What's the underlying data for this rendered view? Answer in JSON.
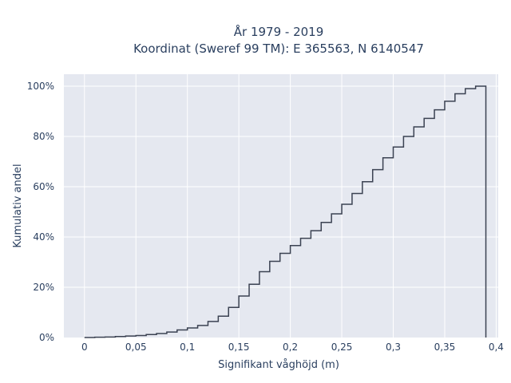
{
  "chart_data": {
    "type": "line",
    "line_shape": "step",
    "title_line1": "År 1979 - 2019",
    "title_line2": "Koordinat (Sweref 99 TM): E 365563, N 6140547",
    "xlabel": "Signifikant våghöjd (m)",
    "ylabel": "Kumulativ andel",
    "xlim": [
      -0.02,
      0.402
    ],
    "ylim": [
      0,
      1.0
    ],
    "x_ticks": [
      {
        "value": 0,
        "label": "0"
      },
      {
        "value": 0.05,
        "label": "0,05"
      },
      {
        "value": 0.1,
        "label": "0,1"
      },
      {
        "value": 0.15,
        "label": "0,15"
      },
      {
        "value": 0.2,
        "label": "0,2"
      },
      {
        "value": 0.25,
        "label": "0,25"
      },
      {
        "value": 0.3,
        "label": "0,3"
      },
      {
        "value": 0.35,
        "label": "0,35"
      },
      {
        "value": 0.4,
        "label": "0,4"
      }
    ],
    "y_ticks": [
      {
        "value": 0,
        "label": "0%"
      },
      {
        "value": 0.2,
        "label": "20%"
      },
      {
        "value": 0.4,
        "label": "40%"
      },
      {
        "value": 0.6,
        "label": "60%"
      },
      {
        "value": 0.8,
        "label": "80%"
      },
      {
        "value": 1.0,
        "label": "100%"
      }
    ],
    "grid": true,
    "colors": {
      "background": "#e5e8f0",
      "grid": "#ffffff",
      "line": "#3b4252",
      "text": "#2a3f5f"
    },
    "x": [
      0,
      0.01,
      0.02,
      0.03,
      0.04,
      0.05,
      0.06,
      0.07,
      0.08,
      0.09,
      0.1,
      0.11,
      0.12,
      0.13,
      0.14,
      0.15,
      0.16,
      0.17,
      0.18,
      0.19,
      0.2,
      0.21,
      0.22,
      0.23,
      0.24,
      0.25,
      0.26,
      0.27,
      0.28,
      0.29,
      0.3,
      0.31,
      0.32,
      0.33,
      0.34,
      0.35,
      0.36,
      0.37,
      0.38,
      0.39
    ],
    "y": [
      0,
      0.001,
      0.002,
      0.004,
      0.006,
      0.008,
      0.012,
      0.016,
      0.022,
      0.03,
      0.038,
      0.048,
      0.064,
      0.085,
      0.12,
      0.165,
      0.212,
      0.262,
      0.303,
      0.335,
      0.366,
      0.395,
      0.425,
      0.458,
      0.492,
      0.53,
      0.573,
      0.62,
      0.668,
      0.715,
      0.758,
      0.8,
      0.838,
      0.872,
      0.906,
      0.94,
      0.97,
      0.99,
      1.0,
      0
    ]
  }
}
